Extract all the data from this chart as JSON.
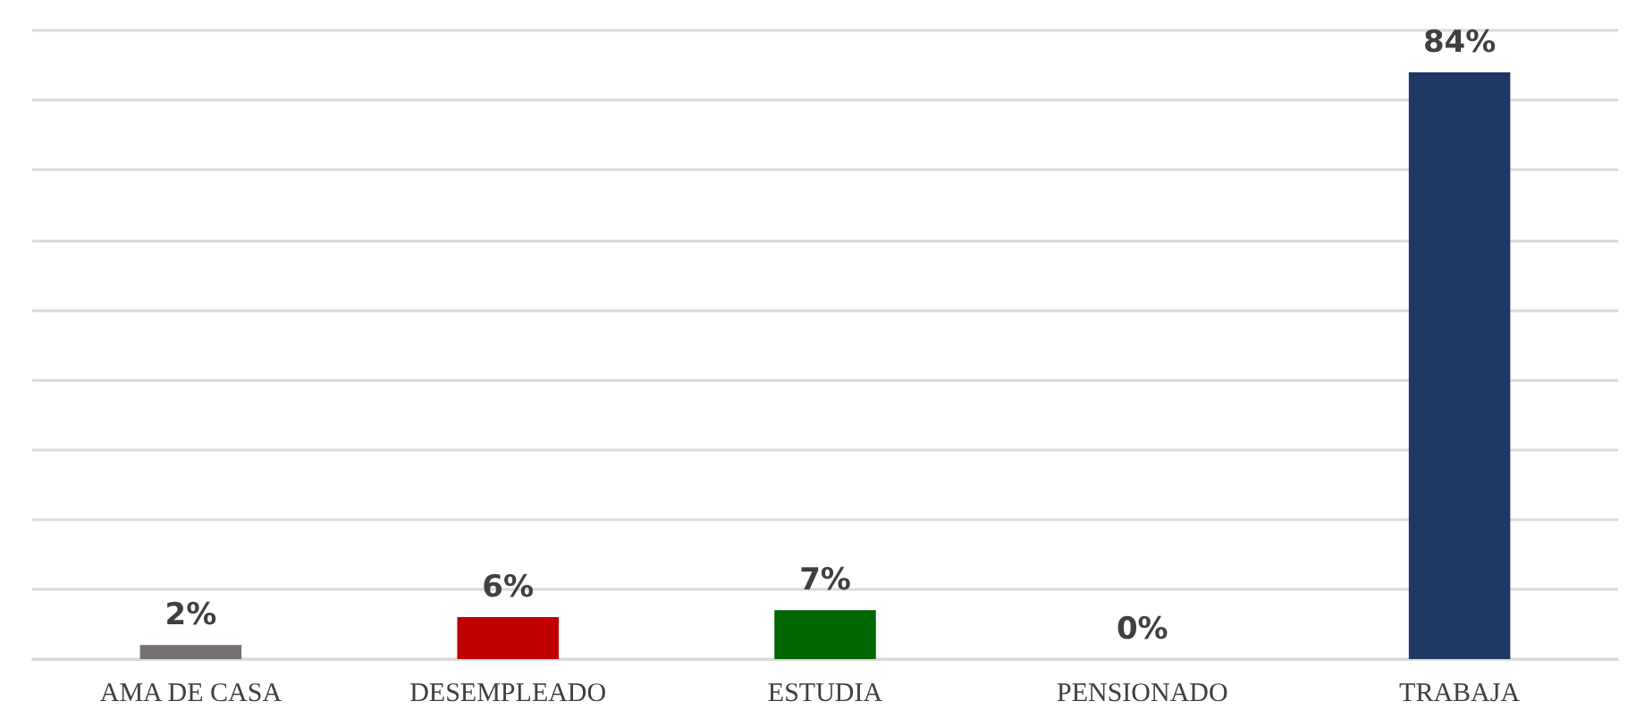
{
  "chart_data": {
    "type": "bar",
    "categories": [
      "AMA DE CASA",
      "DESEMPLEADO",
      "ESTUDIA",
      "PENSIONADO",
      "TRABAJA"
    ],
    "values": [
      2,
      6,
      7,
      0,
      84
    ],
    "colors": [
      "#767171",
      "#c00000",
      "#006600",
      "#2f5597",
      "#203864"
    ],
    "value_labels": [
      "2%",
      "6%",
      "7%",
      "0%",
      "84%"
    ],
    "ylim": [
      0,
      90
    ],
    "yticks": [
      {
        "value": 0,
        "label": null
      },
      {
        "value": 10,
        "label": null
      },
      {
        "value": 20,
        "label": null
      },
      {
        "value": 30,
        "label": null
      },
      {
        "value": 40,
        "label": null
      },
      {
        "value": 50,
        "label": null
      },
      {
        "value": 60,
        "label": null
      },
      {
        "value": 70,
        "label": null
      },
      {
        "value": 80,
        "label": null
      },
      {
        "value": 90,
        "label": null
      }
    ],
    "grid": "y",
    "tick_labels": "x"
  }
}
